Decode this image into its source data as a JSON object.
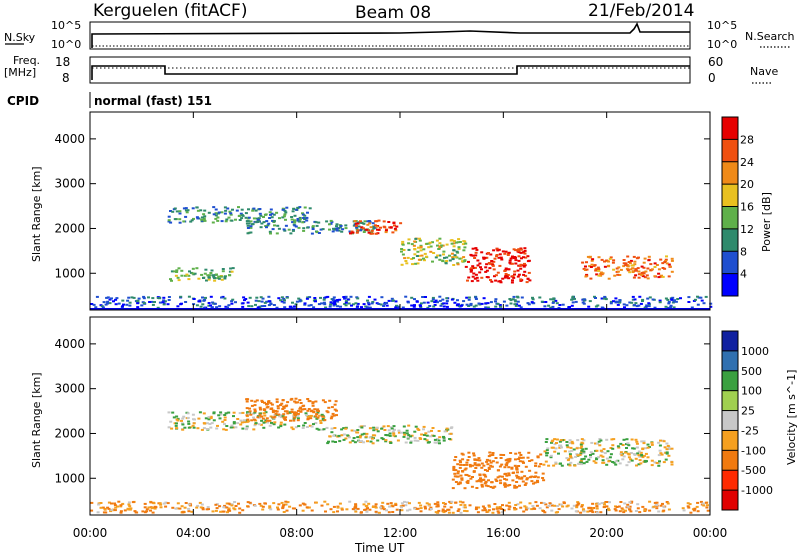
{
  "header": {
    "station": "Kerguelen (fitACF)",
    "beam": "Beam 08",
    "date": "21/Feb/2014"
  },
  "strips": {
    "nsky_label": "N.Sky",
    "nsearch_label": "N.Search",
    "nsky_ticks": [
      "10^5",
      "10^0"
    ],
    "nsearch_ticks": [
      "10^5",
      "10^0"
    ],
    "freq_label_1": "Freq.",
    "freq_label_2": "[MHz]",
    "freq_ticks": [
      "18",
      "8"
    ],
    "nave_label": "Nave",
    "nave_ticks": [
      "60",
      "0"
    ],
    "cpid_label": "CPID",
    "cpid_text": "normal (fast) 151"
  },
  "colors": {
    "power": [
      "#0000ff",
      "#1f4fd0",
      "#2f8a6c",
      "#5fb04a",
      "#e8c020",
      "#f08a18",
      "#f05010",
      "#e60000"
    ],
    "velocity": [
      "#e00000",
      "#ff2a00",
      "#f07a10",
      "#f5a020",
      "#c8c8c8",
      "#a0d050",
      "#3aa040",
      "#3070b0",
      "#1020a0"
    ]
  },
  "chart_data": [
    {
      "type": "heatmap",
      "name": "power",
      "ylabel": "Slant Range [km]",
      "ylim": [
        180,
        4600
      ],
      "yticks": [
        "1000",
        "2000",
        "3000",
        "4000"
      ],
      "xlim": [
        "00:00",
        "24:00"
      ],
      "colorbar_label": "Power [dB]",
      "colorbar_ticks": [
        "4",
        "8",
        "12",
        "16",
        "20",
        "24",
        "28"
      ],
      "colorbar_range": [
        0,
        32
      ],
      "features": [
        {
          "start": "03:00",
          "end": "08:30",
          "range_km": [
            2150,
            2500
          ],
          "level_db": 10
        },
        {
          "start": "03:00",
          "end": "05:30",
          "range_km": [
            850,
            1150
          ],
          "level_db": 14
        },
        {
          "start": "06:00",
          "end": "11:00",
          "range_km": [
            1900,
            2200
          ],
          "level_db": 10
        },
        {
          "start": "10:00",
          "end": "12:00",
          "range_km": [
            1900,
            2200
          ],
          "level_db": 27
        },
        {
          "start": "12:00",
          "end": "14:30",
          "range_km": [
            1200,
            1800
          ],
          "level_db": 16
        },
        {
          "start": "14:30",
          "end": "17:00",
          "range_km": [
            800,
            1600
          ],
          "level_db": 30
        },
        {
          "start": "19:00",
          "end": "22:30",
          "range_km": [
            900,
            1400
          ],
          "level_db": 24
        },
        {
          "start": "00:00",
          "end": "24:00",
          "range_km": [
            250,
            500
          ],
          "level_db": 6
        }
      ]
    },
    {
      "type": "heatmap",
      "name": "velocity",
      "ylabel": "Slant Range [km]",
      "ylim": [
        180,
        4600
      ],
      "yticks": [
        "1000",
        "2000",
        "3000",
        "4000"
      ],
      "xlabel": "Time UT",
      "xticks": [
        "00:00",
        "04:00",
        "08:00",
        "12:00",
        "16:00",
        "20:00",
        "00:00"
      ],
      "xlim": [
        "00:00",
        "24:00"
      ],
      "colorbar_label": "Velocity [m s^-1]",
      "colorbar_ticks": [
        "1000",
        "500",
        "100",
        "25",
        "-25",
        "-100",
        "-500",
        "-1000"
      ],
      "features": [
        {
          "start": "03:00",
          "end": "09:00",
          "range_km": [
            2100,
            2500
          ],
          "velocity_ms": 0
        },
        {
          "start": "06:00",
          "end": "09:30",
          "range_km": [
            2300,
            2800
          ],
          "velocity_ms": -200
        },
        {
          "start": "09:00",
          "end": "14:00",
          "range_km": [
            1800,
            2200
          ],
          "velocity_ms": 0
        },
        {
          "start": "14:00",
          "end": "17:30",
          "range_km": [
            800,
            1600
          ],
          "velocity_ms": -300
        },
        {
          "start": "17:30",
          "end": "22:30",
          "range_km": [
            1300,
            1900
          ],
          "velocity_ms": 0
        },
        {
          "start": "00:00",
          "end": "24:00",
          "range_km": [
            250,
            500
          ],
          "velocity_ms": -100
        }
      ]
    }
  ]
}
